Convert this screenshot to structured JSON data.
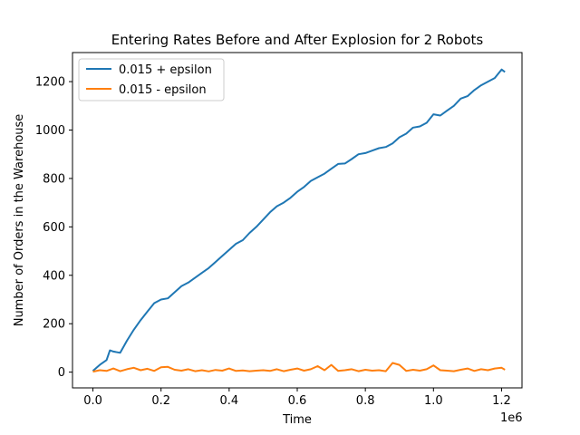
{
  "chart_data": {
    "type": "line",
    "title": "Entering Rates Before and After Explosion for 2 Robots",
    "xlabel": "Time",
    "ylabel": "Number of Orders in the Warehouse",
    "x_offset_label": "1e6",
    "xlim": [
      -0.06,
      1.26
    ],
    "ylim": [
      -65,
      1320
    ],
    "xticks": [
      0.0,
      0.2,
      0.4,
      0.6,
      0.8,
      1.0,
      1.2
    ],
    "xtick_labels": [
      "0.0",
      "0.2",
      "0.4",
      "0.6",
      "0.8",
      "1.0",
      "1.2"
    ],
    "yticks": [
      0,
      200,
      400,
      600,
      800,
      1000,
      1200
    ],
    "ytick_labels": [
      "0",
      "200",
      "400",
      "600",
      "800",
      "1000",
      "1200"
    ],
    "legend_position": "top-left",
    "grid": false,
    "series": [
      {
        "name": "0.015 + epsilon",
        "color": "#1f77b4",
        "x": [
          0.0,
          0.02,
          0.04,
          0.05,
          0.06,
          0.08,
          0.1,
          0.12,
          0.14,
          0.16,
          0.18,
          0.2,
          0.22,
          0.24,
          0.26,
          0.28,
          0.3,
          0.32,
          0.34,
          0.36,
          0.38,
          0.4,
          0.42,
          0.44,
          0.46,
          0.48,
          0.5,
          0.52,
          0.54,
          0.56,
          0.58,
          0.6,
          0.62,
          0.64,
          0.66,
          0.68,
          0.7,
          0.72,
          0.74,
          0.76,
          0.78,
          0.8,
          0.82,
          0.84,
          0.86,
          0.88,
          0.9,
          0.92,
          0.94,
          0.96,
          0.98,
          1.0,
          1.02,
          1.04,
          1.06,
          1.08,
          1.1,
          1.12,
          1.14,
          1.16,
          1.18,
          1.2,
          1.21
        ],
        "values": [
          5,
          30,
          50,
          90,
          85,
          80,
          130,
          175,
          215,
          250,
          285,
          300,
          305,
          330,
          355,
          370,
          390,
          410,
          430,
          455,
          480,
          505,
          530,
          545,
          575,
          600,
          630,
          660,
          685,
          700,
          720,
          745,
          765,
          790,
          805,
          820,
          840,
          860,
          862,
          880,
          900,
          905,
          915,
          925,
          930,
          945,
          970,
          985,
          1010,
          1015,
          1030,
          1065,
          1060,
          1080,
          1100,
          1130,
          1140,
          1165,
          1185,
          1200,
          1215,
          1250,
          1240
        ]
      },
      {
        "name": "0.015 - epsilon",
        "color": "#ff7f0e",
        "x": [
          0.0,
          0.02,
          0.04,
          0.06,
          0.08,
          0.1,
          0.12,
          0.14,
          0.16,
          0.18,
          0.2,
          0.22,
          0.24,
          0.26,
          0.28,
          0.3,
          0.32,
          0.34,
          0.36,
          0.38,
          0.4,
          0.42,
          0.44,
          0.46,
          0.48,
          0.5,
          0.52,
          0.54,
          0.56,
          0.58,
          0.6,
          0.62,
          0.64,
          0.66,
          0.68,
          0.7,
          0.72,
          0.74,
          0.76,
          0.78,
          0.8,
          0.82,
          0.84,
          0.86,
          0.88,
          0.9,
          0.92,
          0.94,
          0.96,
          0.98,
          1.0,
          1.02,
          1.04,
          1.06,
          1.08,
          1.1,
          1.12,
          1.14,
          1.16,
          1.18,
          1.2,
          1.21
        ],
        "values": [
          2,
          8,
          5,
          15,
          4,
          12,
          18,
          8,
          14,
          5,
          20,
          22,
          10,
          6,
          12,
          4,
          8,
          3,
          9,
          6,
          15,
          5,
          7,
          4,
          6,
          8,
          5,
          12,
          4,
          10,
          15,
          6,
          12,
          25,
          8,
          30,
          5,
          8,
          12,
          4,
          10,
          6,
          8,
          4,
          38,
          30,
          5,
          10,
          6,
          12,
          28,
          8,
          6,
          4,
          10,
          15,
          5,
          12,
          8,
          15,
          18,
          10
        ]
      }
    ]
  }
}
